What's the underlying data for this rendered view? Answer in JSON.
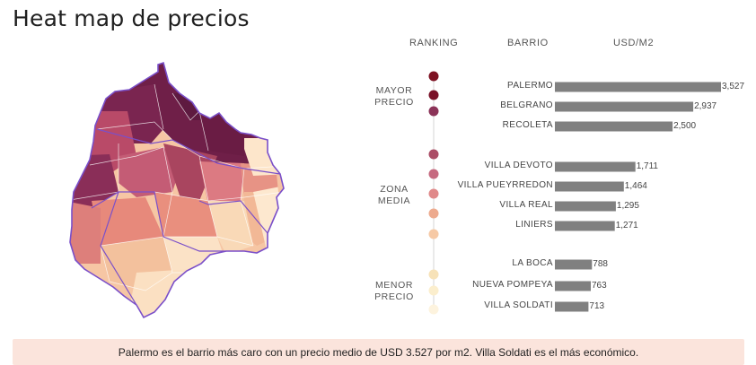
{
  "title": "Heat map de precios",
  "columns": {
    "ranking": "RANKING",
    "barrio": "BARRIO",
    "usd": "USD/M2"
  },
  "groups": {
    "high": "MAYOR\nPRECIO",
    "mid": "ZONA\nMEDIA",
    "low": "MENOR\nPRECIO"
  },
  "rank_colors": [
    "#7d1122",
    "#7a1128",
    "#8b3358",
    "#ab4d66",
    "#c66a80",
    "#e0898a",
    "#edaa8e",
    "#f6c9a5",
    "#f7e2b8",
    "#fbeecd",
    "#fdf3de"
  ],
  "chart_data": {
    "type": "bar",
    "orientation": "horizontal",
    "categories": [
      "PALERMO",
      "BELGRANO",
      "RECOLETA",
      "VILLA DEVOTO",
      "VILLA PUEYRREDON",
      "VILLA REAL",
      "LINIERS",
      "LA BOCA",
      "NUEVA POMPEYA",
      "VILLA SOLDATI"
    ],
    "values": [
      3527,
      2937,
      2500,
      1711,
      1464,
      1295,
      1271,
      788,
      763,
      713
    ],
    "value_labels": [
      "3,527",
      "2,937",
      "2,500",
      "1,711",
      "1,464",
      "1,295",
      "1,271",
      "788",
      "763",
      "713"
    ],
    "groups": [
      "high",
      "high",
      "high",
      "mid",
      "mid",
      "mid",
      "mid",
      "low",
      "low",
      "low"
    ],
    "bar_color": "#808080",
    "xlim": [
      0,
      3527
    ]
  },
  "note": "Palermo es el barrio más caro con un precio medio de USD 3.527 por m2. Villa Soldati es el más económico."
}
